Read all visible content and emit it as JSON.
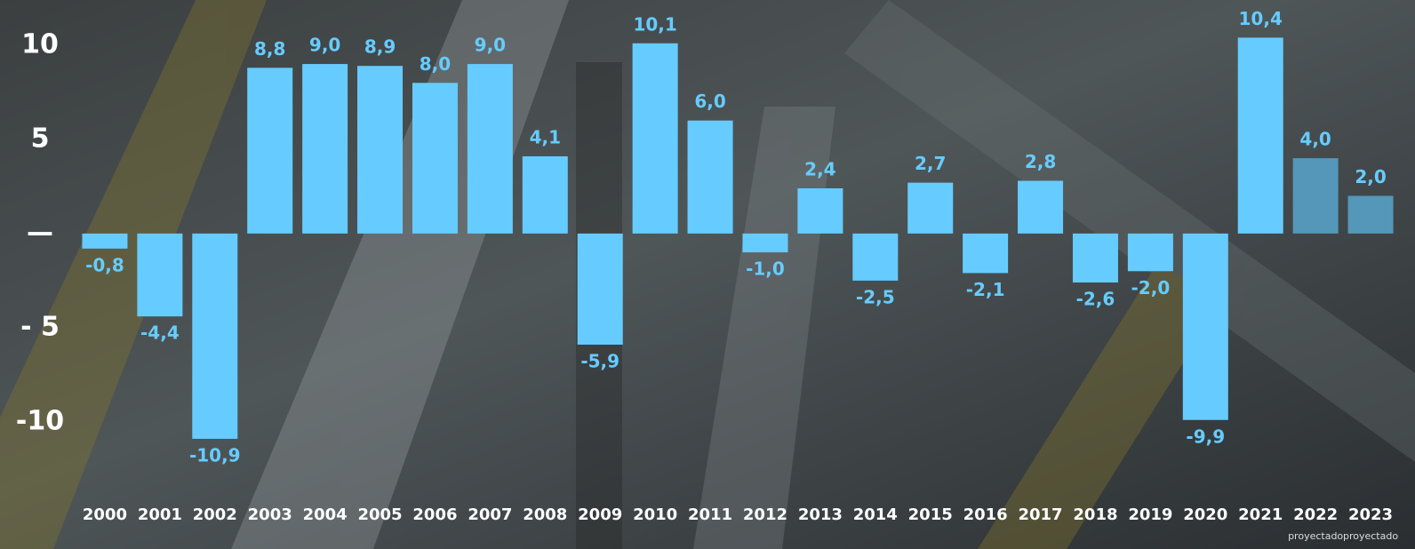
{
  "chart_data": {
    "type": "bar",
    "categories": [
      "2000",
      "2001",
      "2002",
      "2003",
      "2004",
      "2005",
      "2006",
      "2007",
      "2008",
      "2009",
      "2010",
      "2011",
      "2012",
      "2013",
      "2014",
      "2015",
      "2016",
      "2017",
      "2018",
      "2019",
      "2020",
      "2021",
      "2022",
      "2023"
    ],
    "values": [
      -0.8,
      -4.4,
      -10.9,
      8.8,
      9.0,
      8.9,
      8.0,
      9.0,
      4.1,
      -5.9,
      10.1,
      6.0,
      -1.0,
      2.4,
      -2.5,
      2.7,
      -2.1,
      2.8,
      -2.6,
      -2.0,
      -9.9,
      10.4,
      4.0,
      2.0
    ],
    "value_labels": [
      "-0,8",
      "-4,4",
      "-10,9",
      "8,8",
      "9,0",
      "8,9",
      "8,0",
      "9,0",
      "4,1",
      "-5,9",
      "10,1",
      "6,0",
      "-1,0",
      "2,4",
      "-2,5",
      "2,7",
      "-2,1",
      "2,8",
      "-2,6",
      "-2,0",
      "-9,9",
      "10,4",
      "4,0",
      "2,0"
    ],
    "colors": [
      "#66ccff",
      "#66ccff",
      "#66ccff",
      "#66ccff",
      "#66ccff",
      "#66ccff",
      "#66ccff",
      "#66ccff",
      "#66ccff",
      "#66ccff",
      "#66ccff",
      "#66ccff",
      "#66ccff",
      "#66ccff",
      "#66ccff",
      "#66ccff",
      "#66ccff",
      "#66ccff",
      "#66ccff",
      "#66ccff",
      "#66ccff",
      "#66ccff",
      "#5597b8",
      "#5597b8"
    ],
    "notes": [
      null,
      null,
      null,
      null,
      null,
      null,
      null,
      null,
      null,
      null,
      null,
      null,
      null,
      null,
      null,
      null,
      null,
      null,
      null,
      null,
      null,
      null,
      "proyectado",
      "proyectado"
    ],
    "ylim": [
      -12.6,
      12.4
    ],
    "yticks": [
      {
        "value": -10,
        "label": "-10"
      },
      {
        "value": -5,
        "label": "- 5"
      },
      {
        "value": 0,
        "label": "—"
      },
      5,
      10
    ],
    "grid": false
  }
}
